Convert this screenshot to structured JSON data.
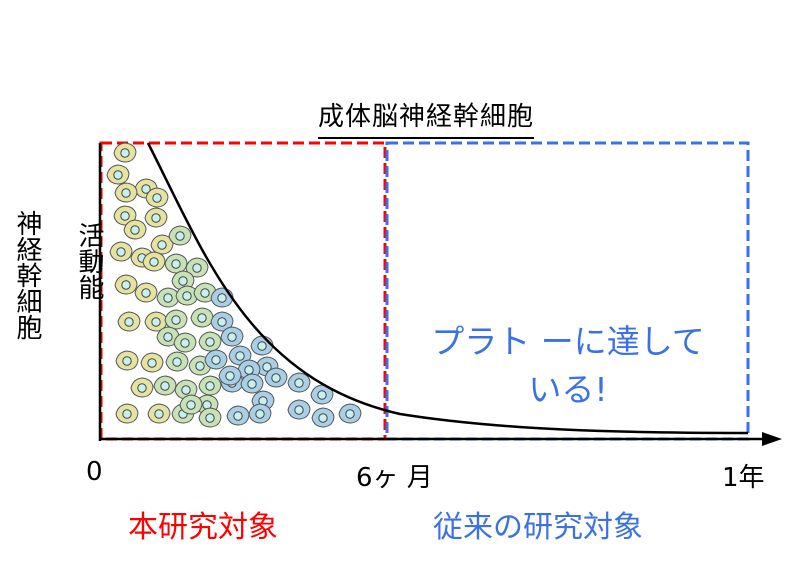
{
  "title": "成体脳神経幹細胞",
  "y_label_line1": "神経幹細胞",
  "y_label_line2": "活動能",
  "x_ticks": [
    "0",
    "6ヶ 月",
    "1年"
  ],
  "red_box_label": "本研究対象",
  "blue_box_label": "従来の研究対象",
  "plateau_text_line1": "プラト ーに達して",
  "plateau_text_line2": "いる!",
  "colors": {
    "red": "#ff0000",
    "blue": "#3a72e6",
    "cell_young": "#e6e2a0",
    "cell_mid": "#c6e2b6",
    "cell_old": "#a8cfe6",
    "nucleus": "#c8f0ef"
  },
  "icons": [
    "neural-stem-cell-icon",
    "axis-arrow-icon"
  ]
}
